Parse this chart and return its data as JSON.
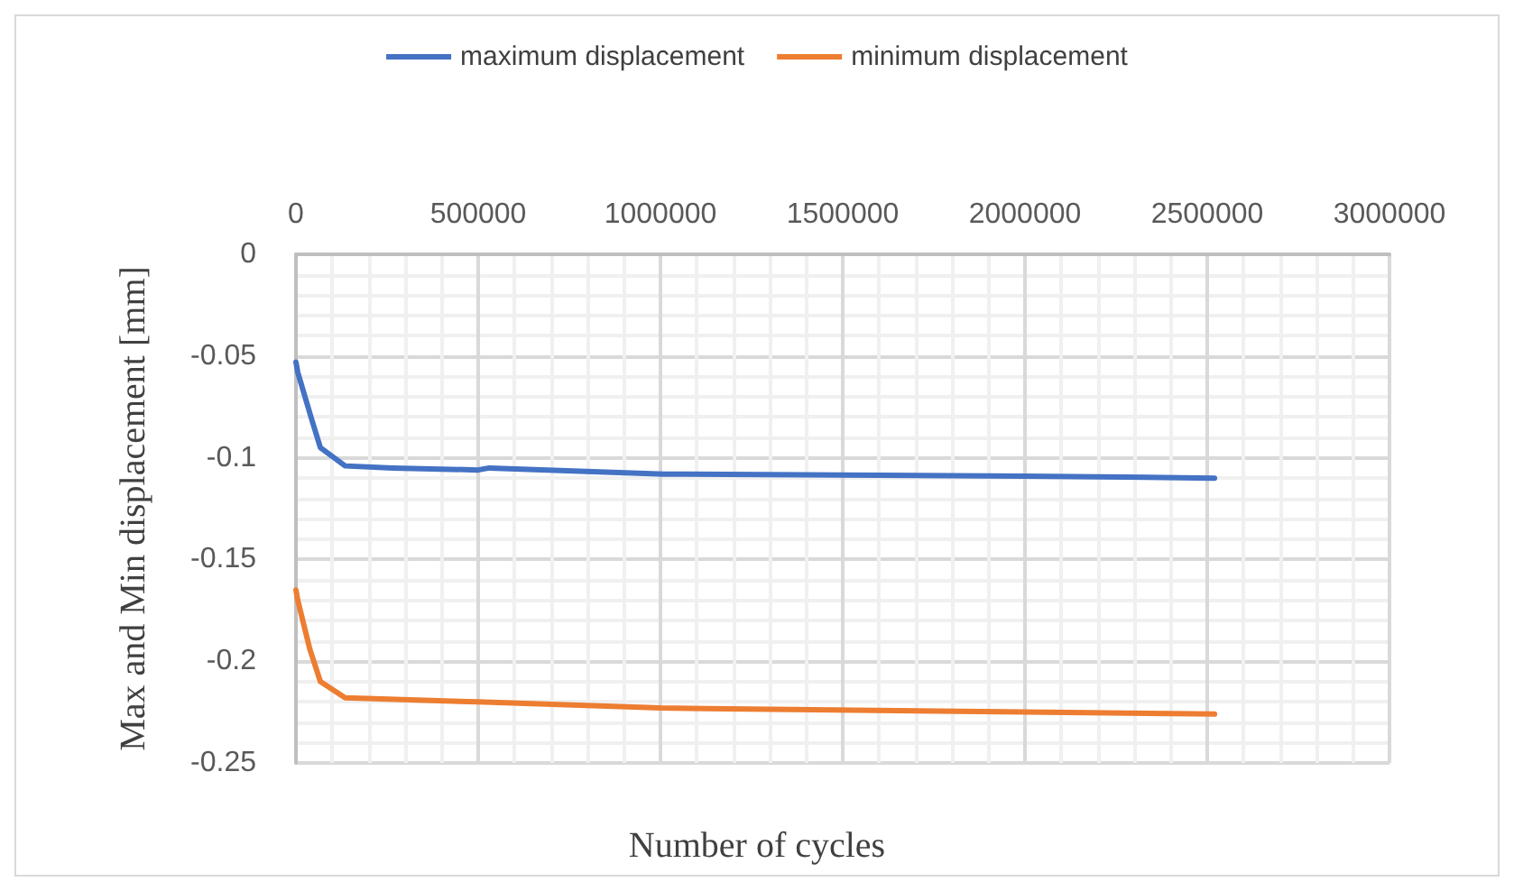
{
  "chart_data": {
    "type": "line",
    "xlabel": "Number of cycles",
    "ylabel": "Max and Min displacement [mm]",
    "xlim": [
      0,
      3000000
    ],
    "xticks": [
      0,
      500000,
      1000000,
      1500000,
      2000000,
      2500000,
      3000000
    ],
    "ylim": [
      -0.25,
      0
    ],
    "yticks": [
      0,
      -0.05,
      -0.1,
      -0.15,
      -0.2,
      -0.25
    ],
    "grid": true,
    "legend": "top",
    "line_style": "solid",
    "marker": "none",
    "series": [
      {
        "name": "maximum displacement",
        "color": "#4472c4",
        "x": [
          0,
          5000,
          43000,
          67000,
          135000,
          265000,
          500000,
          530000,
          1010000,
          2000000,
          2520000
        ],
        "values": [
          -0.053,
          -0.058,
          -0.081,
          -0.095,
          -0.104,
          -0.105,
          -0.106,
          -0.105,
          -0.108,
          -0.109,
          -0.11
        ]
      },
      {
        "name": "minimum displacement",
        "color": "#ed7d31",
        "x": [
          0,
          5000,
          38000,
          67000,
          135000,
          500000,
          1000000,
          2000000,
          2520000
        ],
        "values": [
          -0.165,
          -0.17,
          -0.194,
          -0.21,
          -0.218,
          -0.22,
          -0.223,
          -0.225,
          -0.226
        ]
      }
    ]
  }
}
